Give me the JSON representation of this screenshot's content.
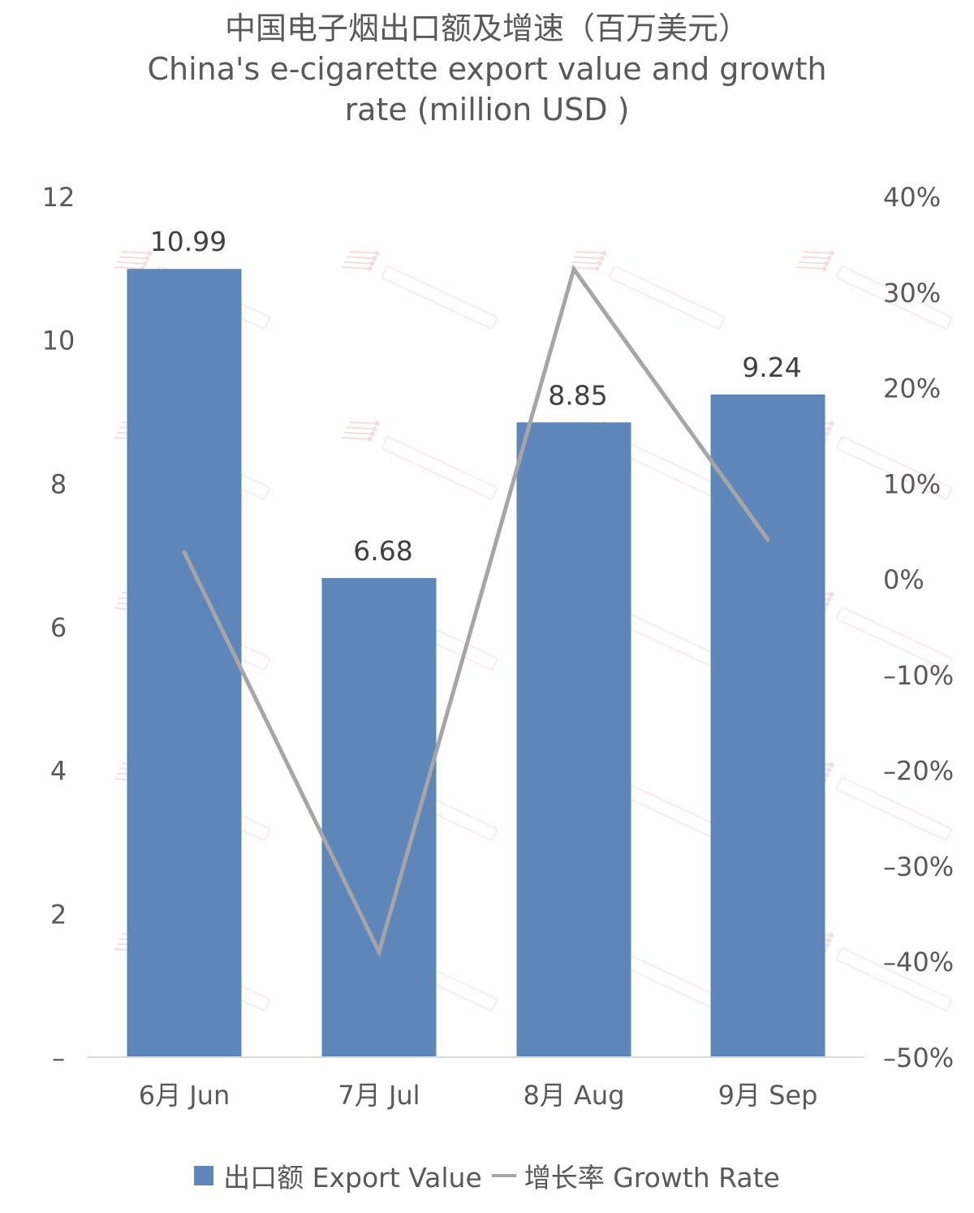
{
  "chart_data": {
    "type": "bar",
    "title": "中国电子烟出口额及增速（百万美元）",
    "subtitle": [
      "China's e-cigarette export value and growth",
      "rate (million USD )"
    ],
    "categories": [
      "6月 Jun",
      "7月 Jul",
      "8月 Aug",
      "9月 Sep"
    ],
    "series": [
      {
        "name": "出口额 Export Value",
        "type": "bar",
        "axis": "left",
        "values": [
          10.99,
          6.68,
          8.85,
          9.24
        ],
        "labels": [
          "10.99",
          "6.68",
          "8.85",
          "9.24"
        ],
        "color": "#5f86b9"
      },
      {
        "name": "增长率 Growth Rate",
        "type": "line",
        "axis": "right",
        "values": [
          2.8,
          -39.0,
          32.4,
          4.1
        ],
        "color": "#a6a6a6"
      }
    ],
    "y_left": {
      "min": 0,
      "max": 12,
      "ticks": [
        "–",
        "2",
        "4",
        "6",
        "8",
        "10",
        "12"
      ]
    },
    "y_right": {
      "min": -50,
      "max": 40,
      "ticks": [
        "–50%",
        "–40%",
        "–30%",
        "–20%",
        "–10%",
        "0%",
        "10%",
        "20%",
        "30%",
        "40%"
      ]
    },
    "legend_position": "bottom",
    "grid": false
  }
}
